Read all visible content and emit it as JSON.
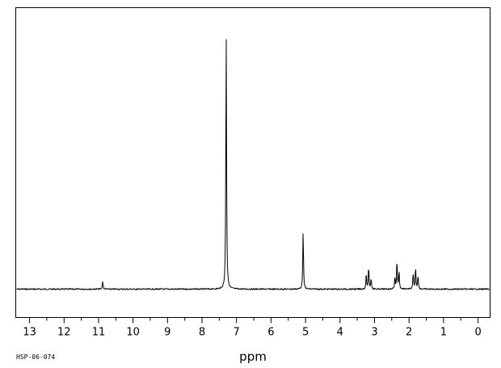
{
  "chart_data": {
    "type": "line",
    "title": "",
    "xlabel": "ppm",
    "ylabel": "",
    "xlim": [
      13.4,
      -0.35
    ],
    "ylim": [
      -0.12,
      1.0
    ],
    "x_reversed": true,
    "grid": false,
    "x_ticks": [
      13,
      12,
      11,
      10,
      9,
      8,
      7,
      6,
      5,
      4,
      3,
      2,
      1,
      0
    ],
    "x_tick_labels": [
      "13",
      "12",
      "11",
      "10",
      "9",
      "8",
      "7",
      "6",
      "5",
      "4",
      "3",
      "2",
      "1",
      "0"
    ],
    "baseline": 0,
    "peaks": [
      {
        "ppm": 10.88,
        "height": 0.032
      },
      {
        "ppm": 7.3,
        "height": 1.0
      },
      {
        "ppm": 5.07,
        "height": 0.225
      },
      {
        "ppm": 3.24,
        "height": 0.058
      },
      {
        "ppm": 3.17,
        "height": 0.083
      },
      {
        "ppm": 3.1,
        "height": 0.042
      },
      {
        "ppm": 2.41,
        "height": 0.045
      },
      {
        "ppm": 2.35,
        "height": 0.11
      },
      {
        "ppm": 2.29,
        "height": 0.07
      },
      {
        "ppm": 1.88,
        "height": 0.06
      },
      {
        "ppm": 1.81,
        "height": 0.083
      },
      {
        "ppm": 1.74,
        "height": 0.055
      }
    ],
    "annotations": [
      "HSP-06-074"
    ]
  }
}
